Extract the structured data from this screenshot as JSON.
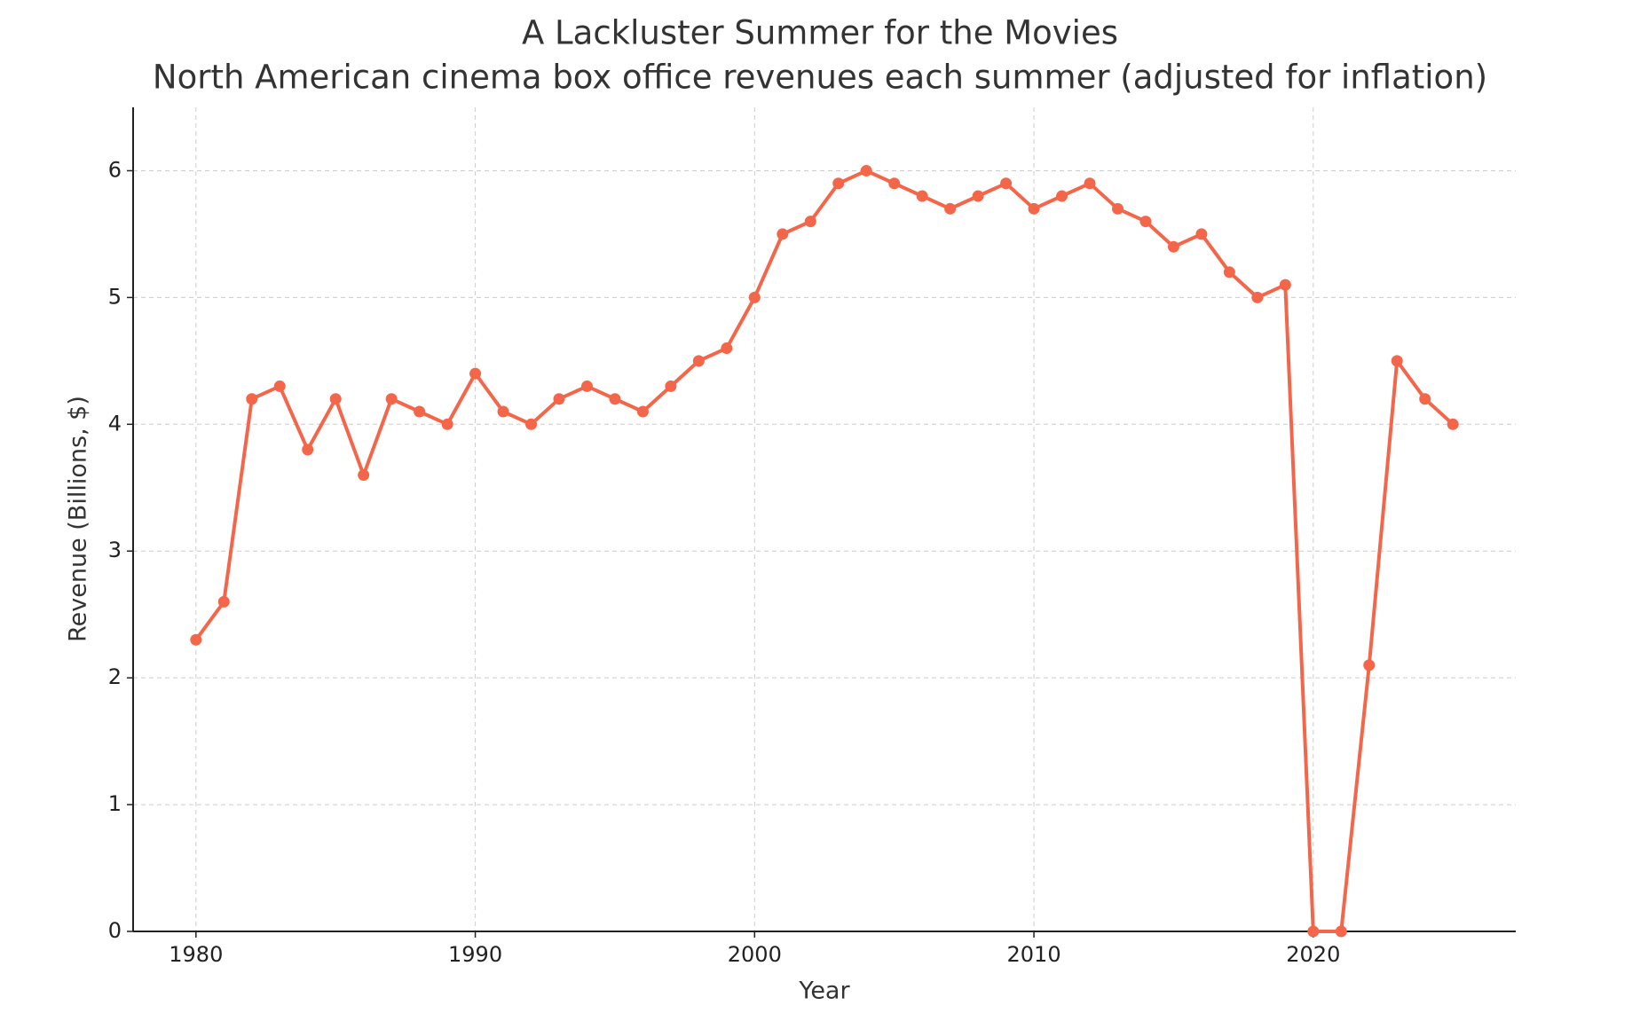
{
  "chart_data": {
    "type": "line",
    "title": "A Lackluster Summer for the Movies",
    "subtitle": "North American cinema box office revenues each summer (adjusted for inflation)",
    "x_label": "Year",
    "y_label": "Revenue (Billions, $)",
    "x": [
      1980,
      1981,
      1982,
      1983,
      1984,
      1985,
      1986,
      1987,
      1988,
      1989,
      1990,
      1991,
      1992,
      1993,
      1994,
      1995,
      1996,
      1997,
      1998,
      1999,
      2000,
      2001,
      2002,
      2003,
      2004,
      2005,
      2006,
      2007,
      2008,
      2009,
      2010,
      2011,
      2012,
      2013,
      2014,
      2015,
      2016,
      2017,
      2018,
      2019,
      2020,
      2021,
      2022,
      2023,
      2024,
      2025
    ],
    "series": [
      {
        "name": "Revenue",
        "color": "#f4664a",
        "values": [
          2.3,
          2.6,
          4.2,
          4.3,
          3.8,
          4.2,
          3.6,
          4.2,
          4.1,
          4.0,
          4.4,
          4.1,
          4.0,
          4.2,
          4.3,
          4.2,
          4.1,
          4.3,
          4.5,
          4.6,
          5.0,
          5.5,
          5.6,
          5.9,
          6.0,
          5.9,
          5.8,
          5.7,
          5.8,
          5.9,
          5.7,
          5.8,
          5.9,
          5.7,
          5.6,
          5.4,
          5.5,
          5.2,
          5.0,
          5.1,
          0,
          0,
          2.1,
          4.5,
          4.2,
          4.0
        ]
      }
    ],
    "xlim": [
      1977.75,
      2027.25
    ],
    "ylim": [
      0,
      6.5
    ],
    "xticks": [
      1980,
      1990,
      2000,
      2010,
      2020
    ],
    "yticks": [
      0,
      1,
      2,
      3,
      4,
      5,
      6
    ],
    "grid": true
  }
}
